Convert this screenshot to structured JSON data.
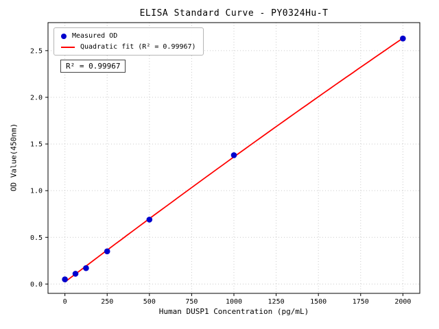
{
  "chart_data": {
    "type": "scatter",
    "title": "ELISA Standard Curve - PY0324Hu-T",
    "xlabel": "Human DUSP1 Concentration (pg/mL)",
    "ylabel": "OD Value(450nm)",
    "x_ticks": [
      0,
      250,
      500,
      750,
      1000,
      1250,
      1500,
      1750,
      2000
    ],
    "y_ticks": [
      0,
      0.5,
      1,
      1.5,
      2,
      2.5
    ],
    "xlim": [
      -100,
      2100
    ],
    "ylim": [
      -0.1,
      2.8
    ],
    "grid": true,
    "grid_color": "#c9c9c9",
    "legend_position": "upper-left",
    "annotation": "R² = 0.99967",
    "series": [
      {
        "name": "Measured OD",
        "kind": "scatter",
        "color": "#0000cd",
        "x": [
          0,
          62.5,
          125,
          250,
          500,
          1000,
          2000
        ],
        "y": [
          0.05,
          0.11,
          0.17,
          0.35,
          0.69,
          1.38,
          2.63
        ]
      },
      {
        "name": "Quadratic fit (R² = 0.99967)",
        "kind": "line",
        "color": "#ff0000",
        "fit": "quadratic",
        "r_squared": 0.99967
      }
    ]
  }
}
